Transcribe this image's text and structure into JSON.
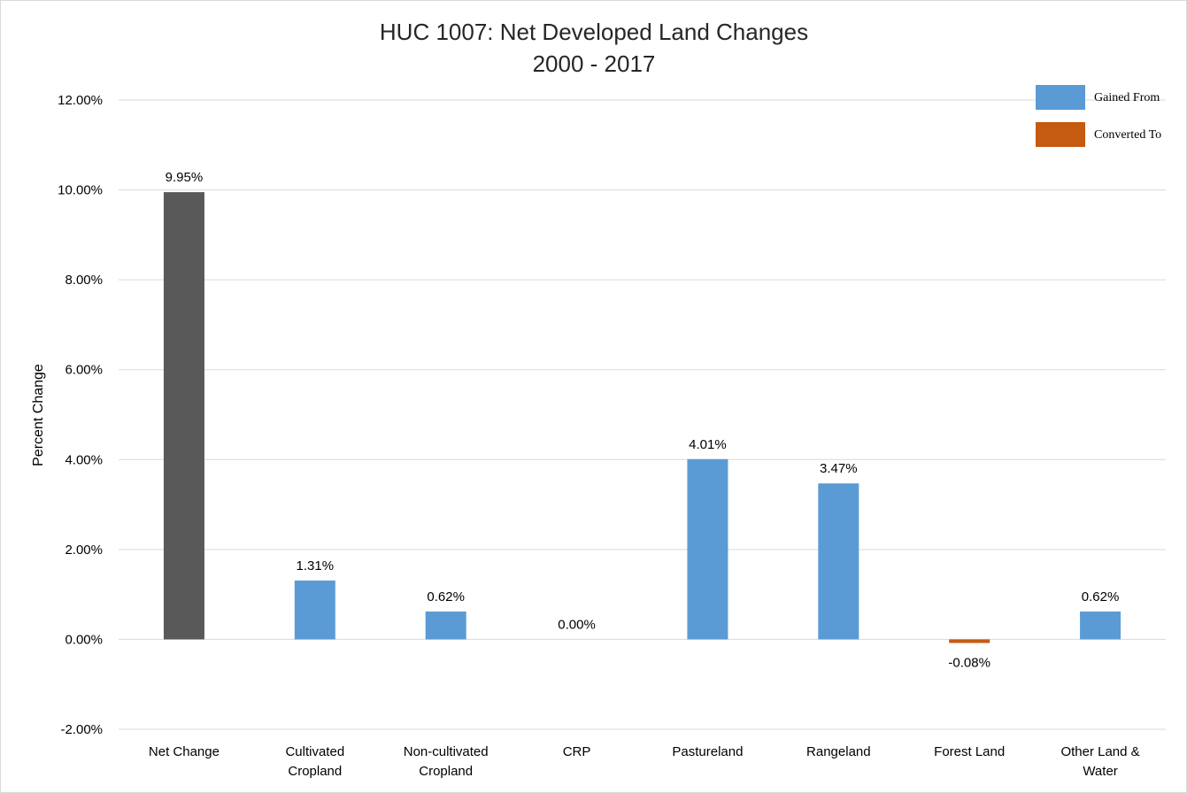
{
  "chart_data": {
    "type": "bar",
    "title": [
      "HUC 1007: Net Developed Land Changes",
      "2000 - 2017"
    ],
    "ylabel": "Percent Change",
    "xlabel": "",
    "ylim": [
      -0.02,
      0.12
    ],
    "yticks": [
      {
        "value": -0.02,
        "label": "-2.00%"
      },
      {
        "value": 0.0,
        "label": "0.00%"
      },
      {
        "value": 0.02,
        "label": "2.00%"
      },
      {
        "value": 0.04,
        "label": "4.00%"
      },
      {
        "value": 0.06,
        "label": "6.00%"
      },
      {
        "value": 0.08,
        "label": "8.00%"
      },
      {
        "value": 0.1,
        "label": "10.00%"
      },
      {
        "value": 0.12,
        "label": "12.00%"
      }
    ],
    "grid": true,
    "categories": [
      [
        "Net Change"
      ],
      [
        "Cultivated",
        "Cropland"
      ],
      [
        "Non-cultivated",
        "Cropland"
      ],
      [
        "CRP"
      ],
      [
        "Pastureland"
      ],
      [
        "Rangeland"
      ],
      [
        "Forest Land"
      ],
      [
        "Other Land &",
        "Water"
      ]
    ],
    "values": [
      0.0995,
      0.0131,
      0.0062,
      0.0,
      0.0401,
      0.0347,
      -0.0008,
      0.0062
    ],
    "data_labels": [
      "9.95%",
      "1.31%",
      "0.62%",
      "0.00%",
      "4.01%",
      "3.47%",
      "-0.08%",
      "0.62%"
    ],
    "bar_series": [
      "net",
      "gained",
      "gained",
      "gained",
      "gained",
      "gained",
      "converted",
      "gained"
    ],
    "colors": {
      "net": "#595959",
      "gained": "#5b9bd5",
      "converted": "#c55a11"
    },
    "legend": {
      "placement": "top-right",
      "entries": [
        {
          "key": "gained",
          "label": "Gained From"
        },
        {
          "key": "converted",
          "label": "Converted To"
        }
      ]
    }
  }
}
